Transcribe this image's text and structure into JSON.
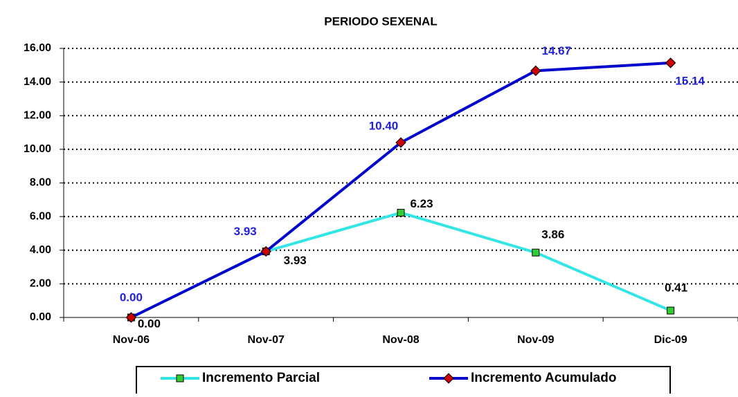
{
  "chart_data": {
    "type": "line",
    "title": "PERIODO SEXENAL",
    "categories": [
      "Nov-06",
      "Nov-07",
      "Nov-08",
      "Nov-09",
      "Dic-09"
    ],
    "series": [
      {
        "name": "Incremento Parcial",
        "color": "#33e6e6",
        "marker_color": "#33cc33",
        "marker": "square",
        "values": [
          0,
          3.93,
          6.23,
          3.86,
          0.41
        ],
        "value_labels": [
          "0.00",
          "3.93",
          "6.23",
          "3.86",
          "0.41"
        ],
        "label_color": "#000000"
      },
      {
        "name": "Incremento Acumulado",
        "color": "#0000cc",
        "marker_color": "#cc0000",
        "marker": "diamond",
        "values": [
          0,
          3.93,
          10.4,
          14.67,
          15.14
        ],
        "value_labels": [
          "0.00",
          "3.93",
          "10.40",
          "14.67",
          "15.14"
        ],
        "label_color": "#2222dd"
      }
    ],
    "ylim": [
      0,
      16
    ],
    "yticks": [
      {
        "value": 0,
        "label": "0.00"
      },
      {
        "value": 2,
        "label": "2.00"
      },
      {
        "value": 4,
        "label": "4.00"
      },
      {
        "value": 6,
        "label": "6.00"
      },
      {
        "value": 8,
        "label": "8.00"
      },
      {
        "value": 10,
        "label": "10.00"
      },
      {
        "value": 12,
        "label": "12.00"
      },
      {
        "value": 14,
        "label": "14.00"
      },
      {
        "value": 16,
        "label": "16.00"
      }
    ],
    "grid": true,
    "legend": "bottom"
  }
}
